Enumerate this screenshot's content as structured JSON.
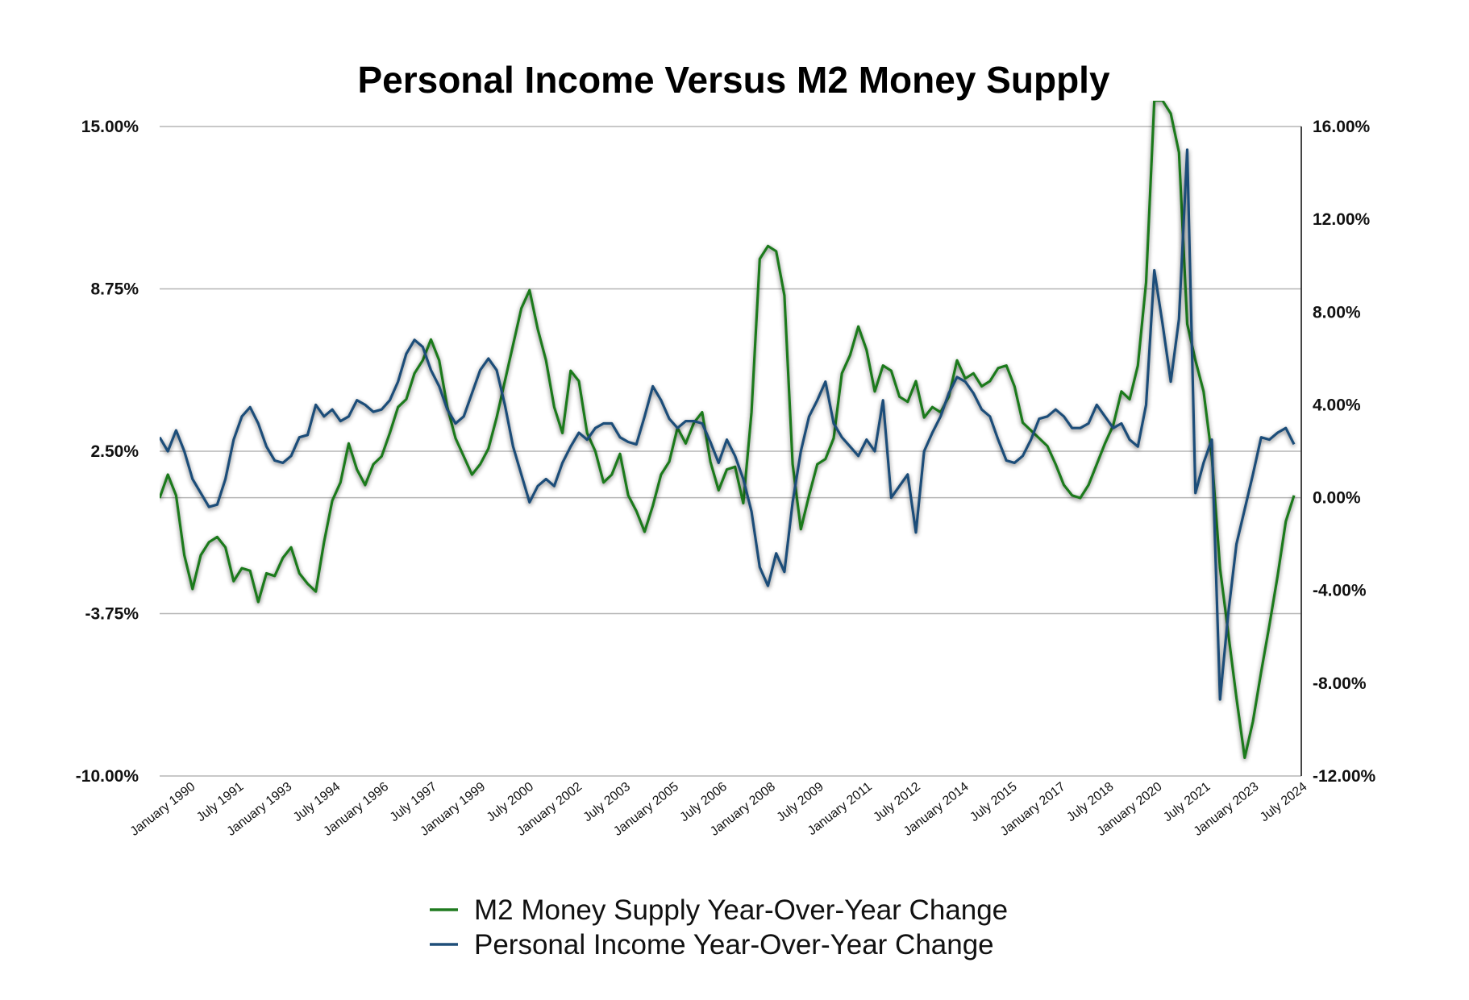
{
  "chart_data": {
    "type": "line",
    "title": "Personal Income Versus M2 Money Supply",
    "left_axis": {
      "ylim": [
        -10,
        15
      ],
      "ticks": [
        "15.00%",
        "8.75%",
        "2.50%",
        "-3.75%",
        "-10.00%"
      ],
      "tick_values": [
        15,
        8.75,
        2.5,
        -3.75,
        -10
      ],
      "series": "M2 Money Supply Year-Over-Year Change"
    },
    "right_axis": {
      "ylim": [
        -12,
        16
      ],
      "ticks": [
        "16.00%",
        "12.00%",
        "8.00%",
        "4.00%",
        "0.00%",
        "-4.00%",
        "-8.00%",
        "-12.00%"
      ],
      "tick_values": [
        16,
        12,
        8,
        4,
        0,
        -4,
        -8,
        -12
      ],
      "series": "Personal Income Year-Over-Year Change"
    },
    "x_axis": {
      "range": [
        "1990-01",
        "2024-07"
      ],
      "tick_labels": [
        "January 1990",
        "July 1991",
        "January 1993",
        "July 1994",
        "January 1996",
        "July 1997",
        "January 1999",
        "July 2000",
        "January 2002",
        "July 2003",
        "January 2005",
        "July 2006",
        "January 2008",
        "July 2009",
        "January 2011",
        "July 2012",
        "January 2014",
        "July 2015",
        "January 2017",
        "July 2018",
        "January 2020",
        "July 2021",
        "January 2023",
        "July 2024"
      ]
    },
    "grid": "horizontal",
    "legend_position": "bottom",
    "series": [
      {
        "name": "M2 Money Supply Year-Over-Year Change",
        "color": "#1f7a1f",
        "axis": "left",
        "points": [
          [
            "1990-01",
            0.7
          ],
          [
            "1990-04",
            1.6
          ],
          [
            "1990-07",
            0.8
          ],
          [
            "1990-10",
            -1.5
          ],
          [
            "1991-01",
            -2.8
          ],
          [
            "1991-04",
            -1.5
          ],
          [
            "1991-07",
            -1.0
          ],
          [
            "1991-10",
            -0.8
          ],
          [
            "1992-01",
            -1.2
          ],
          [
            "1992-04",
            -2.5
          ],
          [
            "1992-07",
            -2.0
          ],
          [
            "1992-10",
            -2.1
          ],
          [
            "1993-01",
            -3.3
          ],
          [
            "1993-04",
            -2.2
          ],
          [
            "1993-07",
            -2.3
          ],
          [
            "1993-10",
            -1.6
          ],
          [
            "1994-01",
            -1.2
          ],
          [
            "1994-04",
            -2.2
          ],
          [
            "1994-07",
            -2.6
          ],
          [
            "1994-10",
            -2.9
          ],
          [
            "1995-01",
            -1.0
          ],
          [
            "1995-04",
            0.6
          ],
          [
            "1995-07",
            1.3
          ],
          [
            "1995-10",
            2.8
          ],
          [
            "1996-01",
            1.8
          ],
          [
            "1996-04",
            1.2
          ],
          [
            "1996-07",
            2.0
          ],
          [
            "1996-10",
            2.3
          ],
          [
            "1997-01",
            3.2
          ],
          [
            "1997-04",
            4.2
          ],
          [
            "1997-07",
            4.5
          ],
          [
            "1997-10",
            5.5
          ],
          [
            "1998-01",
            6.0
          ],
          [
            "1998-04",
            6.8
          ],
          [
            "1998-07",
            6.0
          ],
          [
            "1998-10",
            4.2
          ],
          [
            "1999-01",
            3.0
          ],
          [
            "1999-04",
            2.3
          ],
          [
            "1999-07",
            1.6
          ],
          [
            "1999-10",
            2.0
          ],
          [
            "2000-01",
            2.6
          ],
          [
            "2000-04",
            3.8
          ],
          [
            "2000-07",
            5.2
          ],
          [
            "2000-10",
            6.6
          ],
          [
            "2001-01",
            8.0
          ],
          [
            "2001-04",
            8.7
          ],
          [
            "2001-07",
            7.2
          ],
          [
            "2001-10",
            6.0
          ],
          [
            "2002-01",
            4.2
          ],
          [
            "2002-04",
            3.2
          ],
          [
            "2002-07",
            5.6
          ],
          [
            "2002-10",
            5.2
          ],
          [
            "2003-01",
            3.2
          ],
          [
            "2003-04",
            2.5
          ],
          [
            "2003-07",
            1.3
          ],
          [
            "2003-10",
            1.6
          ],
          [
            "2004-01",
            2.4
          ],
          [
            "2004-04",
            0.8
          ],
          [
            "2004-07",
            0.2
          ],
          [
            "2004-10",
            -0.6
          ],
          [
            "2005-01",
            0.4
          ],
          [
            "2005-04",
            1.6
          ],
          [
            "2005-07",
            2.1
          ],
          [
            "2005-10",
            3.4
          ],
          [
            "2006-01",
            2.8
          ],
          [
            "2006-04",
            3.6
          ],
          [
            "2006-07",
            4.0
          ],
          [
            "2006-10",
            2.1
          ],
          [
            "2007-01",
            1.0
          ],
          [
            "2007-04",
            1.8
          ],
          [
            "2007-07",
            1.9
          ],
          [
            "2007-10",
            0.5
          ],
          [
            "2008-01",
            4.0
          ],
          [
            "2008-04",
            9.9
          ],
          [
            "2008-07",
            10.4
          ],
          [
            "2008-10",
            10.2
          ],
          [
            "2009-01",
            8.5
          ],
          [
            "2009-04",
            2.0
          ],
          [
            "2009-07",
            -0.5
          ],
          [
            "2009-10",
            0.8
          ],
          [
            "2010-01",
            2.0
          ],
          [
            "2010-04",
            2.2
          ],
          [
            "2010-07",
            3.0
          ],
          [
            "2010-10",
            5.5
          ],
          [
            "2011-01",
            6.2
          ],
          [
            "2011-04",
            7.3
          ],
          [
            "2011-07",
            6.4
          ],
          [
            "2011-10",
            4.8
          ],
          [
            "2012-01",
            5.8
          ],
          [
            "2012-04",
            5.6
          ],
          [
            "2012-07",
            4.6
          ],
          [
            "2012-10",
            4.4
          ],
          [
            "2013-01",
            5.2
          ],
          [
            "2013-04",
            3.8
          ],
          [
            "2013-07",
            4.2
          ],
          [
            "2013-10",
            4.0
          ],
          [
            "2014-01",
            4.6
          ],
          [
            "2014-04",
            6.0
          ],
          [
            "2014-07",
            5.3
          ],
          [
            "2014-10",
            5.5
          ],
          [
            "2015-01",
            5.0
          ],
          [
            "2015-04",
            5.2
          ],
          [
            "2015-07",
            5.7
          ],
          [
            "2015-10",
            5.8
          ],
          [
            "2016-01",
            5.0
          ],
          [
            "2016-04",
            3.6
          ],
          [
            "2016-07",
            3.3
          ],
          [
            "2016-10",
            3.0
          ],
          [
            "2017-01",
            2.7
          ],
          [
            "2017-04",
            2.0
          ],
          [
            "2017-07",
            1.2
          ],
          [
            "2017-10",
            0.8
          ],
          [
            "2018-01",
            0.7
          ],
          [
            "2018-04",
            1.2
          ],
          [
            "2018-07",
            2.0
          ],
          [
            "2018-10",
            2.8
          ],
          [
            "2019-01",
            3.5
          ],
          [
            "2019-04",
            4.8
          ],
          [
            "2019-07",
            4.5
          ],
          [
            "2019-10",
            5.8
          ],
          [
            "2020-01",
            9.0
          ],
          [
            "2020-04",
            16.0
          ],
          [
            "2020-07",
            16.0
          ],
          [
            "2020-10",
            15.5
          ],
          [
            "2021-01",
            14.0
          ],
          [
            "2021-04",
            7.4
          ],
          [
            "2021-07",
            6.0
          ],
          [
            "2021-10",
            4.8
          ],
          [
            "2022-01",
            2.3
          ],
          [
            "2022-04",
            -2.0
          ],
          [
            "2022-07",
            -4.5
          ],
          [
            "2022-10",
            -7.0
          ],
          [
            "2023-01",
            -9.3
          ],
          [
            "2023-04",
            -7.9
          ],
          [
            "2023-07",
            -6.0
          ],
          [
            "2023-10",
            -4.2
          ],
          [
            "2024-01",
            -2.3
          ],
          [
            "2024-04",
            -0.2
          ],
          [
            "2024-07",
            0.8
          ]
        ]
      },
      {
        "name": "Personal Income Year-Over-Year Change",
        "color": "#1f4e79",
        "axis": "right",
        "points": [
          [
            "1990-01",
            2.6
          ],
          [
            "1990-04",
            2.0
          ],
          [
            "1990-07",
            2.9
          ],
          [
            "1990-10",
            2.0
          ],
          [
            "1991-01",
            0.8
          ],
          [
            "1991-04",
            0.2
          ],
          [
            "1991-07",
            -0.4
          ],
          [
            "1991-10",
            -0.3
          ],
          [
            "1992-01",
            0.8
          ],
          [
            "1992-04",
            2.5
          ],
          [
            "1992-07",
            3.5
          ],
          [
            "1992-10",
            3.9
          ],
          [
            "1993-01",
            3.2
          ],
          [
            "1993-04",
            2.2
          ],
          [
            "1993-07",
            1.6
          ],
          [
            "1993-10",
            1.5
          ],
          [
            "1994-01",
            1.8
          ],
          [
            "1994-04",
            2.6
          ],
          [
            "1994-07",
            2.7
          ],
          [
            "1994-10",
            4.0
          ],
          [
            "1995-01",
            3.5
          ],
          [
            "1995-04",
            3.8
          ],
          [
            "1995-07",
            3.3
          ],
          [
            "1995-10",
            3.5
          ],
          [
            "1996-01",
            4.2
          ],
          [
            "1996-04",
            4.0
          ],
          [
            "1996-07",
            3.7
          ],
          [
            "1996-10",
            3.8
          ],
          [
            "1997-01",
            4.2
          ],
          [
            "1997-04",
            5.0
          ],
          [
            "1997-07",
            6.2
          ],
          [
            "1997-10",
            6.8
          ],
          [
            "1998-01",
            6.5
          ],
          [
            "1998-04",
            5.5
          ],
          [
            "1998-07",
            4.8
          ],
          [
            "1998-10",
            3.8
          ],
          [
            "1999-01",
            3.2
          ],
          [
            "1999-04",
            3.5
          ],
          [
            "1999-07",
            4.5
          ],
          [
            "1999-10",
            5.5
          ],
          [
            "2000-01",
            6.0
          ],
          [
            "2000-04",
            5.5
          ],
          [
            "2000-07",
            4.0
          ],
          [
            "2000-10",
            2.2
          ],
          [
            "2001-01",
            1.0
          ],
          [
            "2001-04",
            -0.2
          ],
          [
            "2001-07",
            0.5
          ],
          [
            "2001-10",
            0.8
          ],
          [
            "2002-01",
            0.5
          ],
          [
            "2002-04",
            1.5
          ],
          [
            "2002-07",
            2.2
          ],
          [
            "2002-10",
            2.8
          ],
          [
            "2003-01",
            2.5
          ],
          [
            "2003-04",
            3.0
          ],
          [
            "2003-07",
            3.2
          ],
          [
            "2003-10",
            3.2
          ],
          [
            "2004-01",
            2.6
          ],
          [
            "2004-04",
            2.4
          ],
          [
            "2004-07",
            2.3
          ],
          [
            "2004-10",
            3.5
          ],
          [
            "2005-01",
            4.8
          ],
          [
            "2005-04",
            4.2
          ],
          [
            "2005-07",
            3.4
          ],
          [
            "2005-10",
            3.0
          ],
          [
            "2006-01",
            3.3
          ],
          [
            "2006-04",
            3.3
          ],
          [
            "2006-07",
            3.2
          ],
          [
            "2006-10",
            2.4
          ],
          [
            "2007-01",
            1.5
          ],
          [
            "2007-04",
            2.5
          ],
          [
            "2007-07",
            1.8
          ],
          [
            "2007-10",
            0.8
          ],
          [
            "2008-01",
            -0.6
          ],
          [
            "2008-04",
            -3.0
          ],
          [
            "2008-07",
            -3.8
          ],
          [
            "2008-10",
            -2.4
          ],
          [
            "2009-01",
            -3.2
          ],
          [
            "2009-04",
            -0.2
          ],
          [
            "2009-07",
            2.0
          ],
          [
            "2009-10",
            3.5
          ],
          [
            "2010-01",
            4.2
          ],
          [
            "2010-04",
            5.0
          ],
          [
            "2010-07",
            3.2
          ],
          [
            "2010-10",
            2.6
          ],
          [
            "2011-01",
            2.2
          ],
          [
            "2011-04",
            1.8
          ],
          [
            "2011-07",
            2.5
          ],
          [
            "2011-10",
            2.0
          ],
          [
            "2012-01",
            4.2
          ],
          [
            "2012-04",
            0.0
          ],
          [
            "2012-07",
            0.5
          ],
          [
            "2012-10",
            1.0
          ],
          [
            "2013-01",
            -1.5
          ],
          [
            "2013-04",
            2.0
          ],
          [
            "2013-07",
            2.8
          ],
          [
            "2013-10",
            3.5
          ],
          [
            "2014-01",
            4.5
          ],
          [
            "2014-04",
            5.2
          ],
          [
            "2014-07",
            5.0
          ],
          [
            "2014-10",
            4.5
          ],
          [
            "2015-01",
            3.8
          ],
          [
            "2015-04",
            3.5
          ],
          [
            "2015-07",
            2.5
          ],
          [
            "2015-10",
            1.6
          ],
          [
            "2016-01",
            1.5
          ],
          [
            "2016-04",
            1.8
          ],
          [
            "2016-07",
            2.5
          ],
          [
            "2016-10",
            3.4
          ],
          [
            "2017-01",
            3.5
          ],
          [
            "2017-04",
            3.8
          ],
          [
            "2017-07",
            3.5
          ],
          [
            "2017-10",
            3.0
          ],
          [
            "2018-01",
            3.0
          ],
          [
            "2018-04",
            3.2
          ],
          [
            "2018-07",
            4.0
          ],
          [
            "2018-10",
            3.5
          ],
          [
            "2019-01",
            3.0
          ],
          [
            "2019-04",
            3.2
          ],
          [
            "2019-07",
            2.5
          ],
          [
            "2019-10",
            2.2
          ],
          [
            "2020-01",
            4.0
          ],
          [
            "2020-04",
            9.8
          ],
          [
            "2020-07",
            7.5
          ],
          [
            "2020-10",
            5.0
          ],
          [
            "2021-01",
            7.7
          ],
          [
            "2021-04",
            15.0
          ],
          [
            "2021-07",
            0.2
          ],
          [
            "2021-10",
            1.5
          ],
          [
            "2022-01",
            2.5
          ],
          [
            "2022-04",
            -8.7
          ],
          [
            "2022-07",
            -5.0
          ],
          [
            "2022-10",
            -2.0
          ],
          [
            "2023-01",
            -0.5
          ],
          [
            "2023-04",
            1.0
          ],
          [
            "2023-07",
            2.6
          ],
          [
            "2023-10",
            2.5
          ],
          [
            "2024-01",
            2.8
          ],
          [
            "2024-04",
            3.0
          ],
          [
            "2024-07",
            2.3
          ]
        ]
      }
    ]
  }
}
